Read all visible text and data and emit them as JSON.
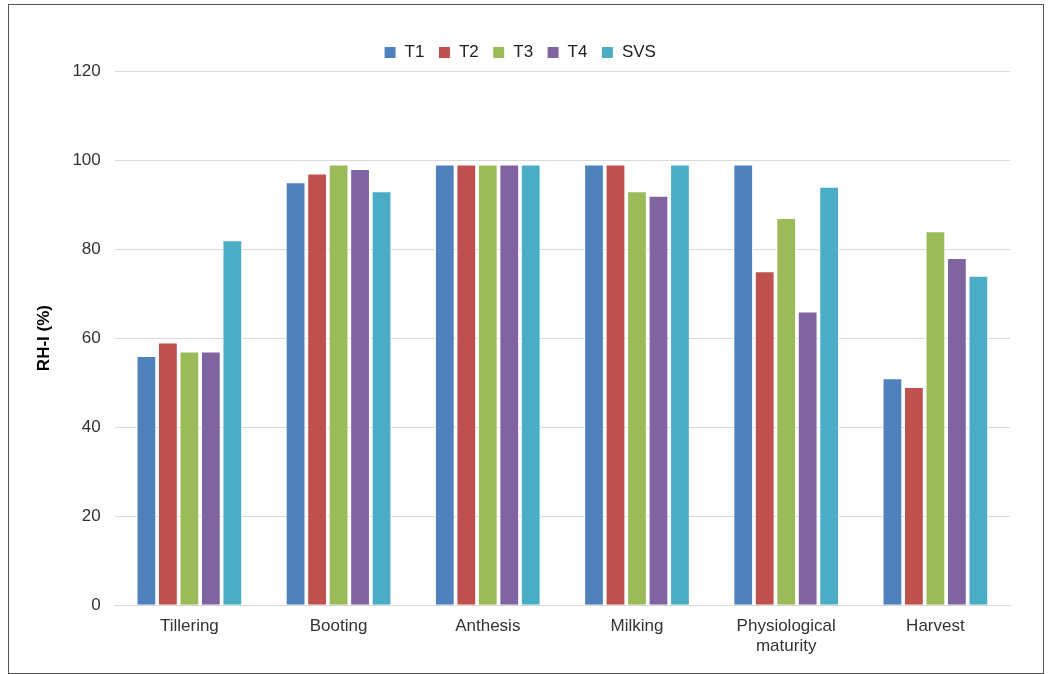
{
  "chart_data": {
    "type": "bar",
    "ylabel": "RH-I (%)",
    "categories": [
      "Tillering",
      "Booting",
      "Anthesis",
      "Milking",
      "Physiological maturity",
      "Harvest"
    ],
    "series": [
      {
        "name": "T1",
        "color": "#4f81bd",
        "values": [
          56,
          95,
          99,
          99,
          99,
          51
        ]
      },
      {
        "name": "T2",
        "color": "#c0504d",
        "values": [
          59,
          97,
          99,
          99,
          75,
          49
        ]
      },
      {
        "name": "T3",
        "color": "#9bbb59",
        "values": [
          57,
          99,
          99,
          93,
          87,
          84
        ]
      },
      {
        "name": "T4",
        "color": "#8064a2",
        "values": [
          57,
          98,
          99,
          92,
          66,
          78
        ]
      },
      {
        "name": "SVS",
        "color": "#4bacc6",
        "values": [
          82,
          93,
          99,
          99,
          94,
          74
        ]
      }
    ],
    "ylim": [
      0,
      120
    ],
    "yticks": [
      0,
      20,
      40,
      60,
      80,
      100,
      120
    ],
    "grid": "y",
    "legend": "top"
  }
}
